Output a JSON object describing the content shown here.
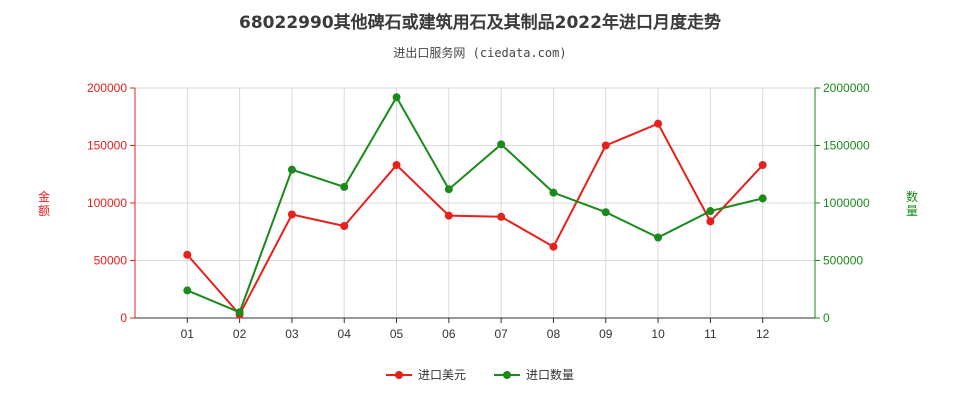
{
  "chart_data": {
    "type": "line",
    "title": "68022990其他碑石或建筑用石及其制品2022年进口月度走势",
    "subtitle": "进出口服务网 (ciedata.com)",
    "categories": [
      "01",
      "02",
      "03",
      "04",
      "05",
      "06",
      "07",
      "08",
      "09",
      "10",
      "11",
      "12"
    ],
    "series": [
      {
        "name": "进口美元",
        "axis": "left",
        "color": "#e8201c",
        "values": [
          55000,
          3000,
          90000,
          80000,
          133000,
          89000,
          88000,
          62000,
          150000,
          169000,
          84000,
          133000
        ]
      },
      {
        "name": "进口数量",
        "axis": "right",
        "color": "#1a8a1a",
        "values": [
          240000,
          50000,
          1290000,
          1140000,
          1920000,
          1120000,
          1510000,
          1090000,
          920000,
          700000,
          930000,
          1040000
        ]
      }
    ],
    "ylabel_left": "金额",
    "ylabel_right": "数量",
    "ylim_left": [
      0,
      200000
    ],
    "ylim_right": [
      0,
      2000000
    ],
    "yticks_left": [
      "0",
      "50000",
      "100000",
      "150000",
      "200000"
    ],
    "yticks_right": [
      "0",
      "500000",
      "1000000",
      "1500000",
      "2000000"
    ],
    "grid": true,
    "legend_position": "bottom-center"
  }
}
